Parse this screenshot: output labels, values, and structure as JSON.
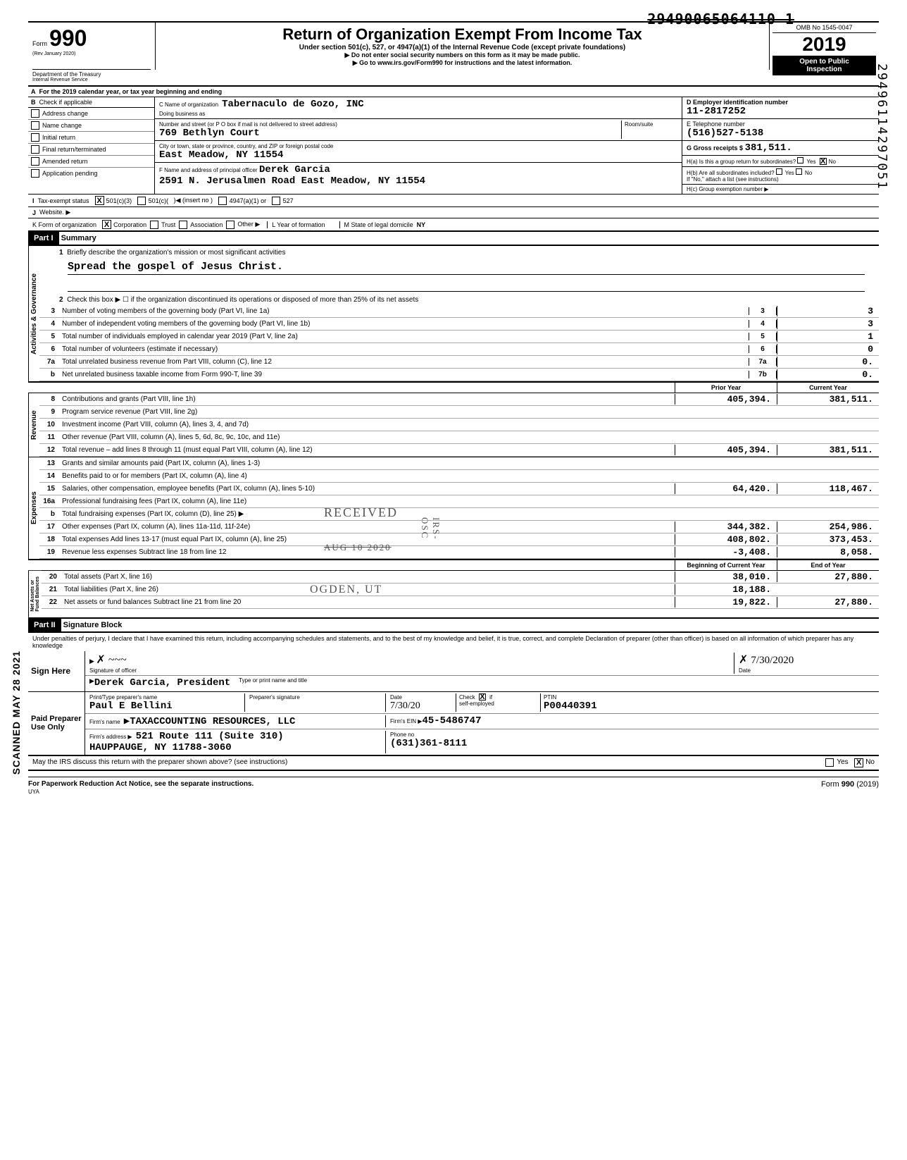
{
  "strike_number": "29490065064110 1",
  "vertical_right": "29496114297051",
  "vertical_left": "SCANNED MAY 28 2021",
  "header": {
    "form_label": "Form",
    "form_number": "990",
    "rev": "(Rev January 2020)",
    "dept1": "Department of the Treasury",
    "dept2": "Internal Revenue Service",
    "title": "Return of Organization Exempt From Income Tax",
    "subtitle": "Under section 501(c), 527, or 4947(a)(1) of the Internal Revenue Code (except private foundations)",
    "arrow1": "▶ Do not enter social security numbers on this form as it may be made public.",
    "arrow2": "▶ Go to www.irs.gov/Form990 for instructions and the latest information.",
    "omb": "OMB No 1545-0047",
    "year": "2019",
    "open1": "Open to Public",
    "open2": "Inspection"
  },
  "line_a": "For the 2019 calendar year, or tax year beginning                                and ending",
  "section_b": {
    "label": "Check if applicable",
    "checks": [
      "Address change",
      "Name change",
      "Initial return",
      "Final return/terminated",
      "Amended return",
      "Application pending"
    ],
    "c_label": "C Name of organization",
    "c_name": "Tabernaculo de Gozo, INC",
    "dba_label": "Doing business as",
    "addr_label": "Number and street (or P O box if mail is not delivered to street address)",
    "addr": "769 Bethlyn Court",
    "room_label": "Room/suite",
    "city_label": "City or town, state or province, country, and ZIP or foreign postal code",
    "city": "East Meadow, NY 11554",
    "f_label": "F Name and address of principal officer",
    "f_name": "Derek Garcia",
    "f_addr": "2591 N. Jerusalmen Road East Meadow, NY 11554",
    "d_label": "D Employer identification number",
    "d_ein": "11-2817252",
    "e_label": "E Telephone number",
    "e_phone": "(516)527-5138",
    "g_label": "G Gross receipts $",
    "g_amount": "381,511.",
    "ha_label": "H(a) Is this a group return for subordinates?",
    "ha_yes": "Yes",
    "ha_no": "No",
    "hb_label": "H(b) Are all subordinates included?",
    "hb_note": "If \"No,\" attach a list (see instructions)",
    "hc_label": "H(c) Group exemption number ▶"
  },
  "line_i": {
    "label": "Tax-exempt status",
    "opt1": "501(c)(3)",
    "opt2": "501(c)(",
    "insert": ")◀ (insert no )",
    "opt3": "4947(a)(1) or",
    "opt4": "527"
  },
  "line_j": {
    "label": "Website. ▶"
  },
  "line_k": {
    "label": "K Form of organization",
    "corp": "Corporation",
    "trust": "Trust",
    "assoc": "Association",
    "other": "Other ▶",
    "l_label": "L  Year of formation",
    "m_label": "M State of legal domicile",
    "m_val": "NY"
  },
  "part1": {
    "header": "Part I",
    "title": "Summary",
    "q1": "Briefly describe the organization's mission or most significant activities",
    "mission": "Spread the gospel of Jesus Christ.",
    "q2": "Check this box ▶ ☐ if the organization discontinued its operations or disposed of more than 25% of its net assets",
    "rows_gov": [
      {
        "n": "3",
        "d": "Number of voting members of the governing body (Part VI, line 1a)",
        "b": "3",
        "v": "3"
      },
      {
        "n": "4",
        "d": "Number of independent voting members of the governing body (Part VI, line 1b)",
        "b": "4",
        "v": "3"
      },
      {
        "n": "5",
        "d": "Total number of individuals employed in calendar year 2019 (Part V, line 2a)",
        "b": "5",
        "v": "1"
      },
      {
        "n": "6",
        "d": "Total number of volunteers (estimate if necessary)",
        "b": "6",
        "v": "0"
      },
      {
        "n": "7a",
        "d": "Total unrelated business revenue from Part VIII, column (C), line 12",
        "b": "7a",
        "v": "0."
      },
      {
        "n": "b",
        "d": "Net unrelated business taxable income from Form 990-T, line 39",
        "b": "7b",
        "v": "0."
      }
    ],
    "col_prior": "Prior Year",
    "col_current": "Current Year",
    "rows_rev": [
      {
        "n": "8",
        "d": "Contributions and grants (Part VIII, line 1h)",
        "p": "405,394.",
        "c": "381,511."
      },
      {
        "n": "9",
        "d": "Program service revenue (Part VIII, line 2g)",
        "p": "",
        "c": ""
      },
      {
        "n": "10",
        "d": "Investment income (Part VIII, column (A), lines 3, 4, and 7d)",
        "p": "",
        "c": ""
      },
      {
        "n": "11",
        "d": "Other revenue (Part VIII, column (A), lines 5, 6d, 8c, 9c, 10c, and 11e)",
        "p": "",
        "c": ""
      },
      {
        "n": "12",
        "d": "Total revenue – add lines 8 through 11 (must equal Part VIII, column (A), line 12)",
        "p": "405,394.",
        "c": "381,511."
      }
    ],
    "rows_exp": [
      {
        "n": "13",
        "d": "Grants and similar amounts paid (Part IX, column (A), lines 1-3)",
        "p": "",
        "c": ""
      },
      {
        "n": "14",
        "d": "Benefits paid to or for members (Part IX, column (A), line 4)",
        "p": "",
        "c": ""
      },
      {
        "n": "15",
        "d": "Salaries, other compensation, employee benefits (Part IX, column (A), lines 5-10)",
        "p": "64,420.",
        "c": "118,467."
      },
      {
        "n": "16a",
        "d": "Professional fundraising fees (Part IX, column (A), line 11e)",
        "p": "",
        "c": ""
      },
      {
        "n": "b",
        "d": "Total fundraising expenses (Part IX, column (D), line 25) ▶",
        "p": "shaded",
        "c": "shaded"
      },
      {
        "n": "17",
        "d": "Other expenses (Part IX, column (A), lines 11a-11d, 11f-24e)",
        "p": "344,382.",
        "c": "254,986."
      },
      {
        "n": "18",
        "d": "Total expenses Add lines 13-17 (must equal Part IX, column (A), line 25)",
        "p": "408,802.",
        "c": "373,453."
      },
      {
        "n": "19",
        "d": "Revenue less expenses Subtract line 18 from line 12",
        "p": "-3,408.",
        "c": "8,058."
      }
    ],
    "col_begin": "Beginning of Current Year",
    "col_end": "End of Year",
    "rows_net": [
      {
        "n": "20",
        "d": "Total assets (Part X, line 16)",
        "p": "38,010.",
        "c": "27,880."
      },
      {
        "n": "21",
        "d": "Total liabilities (Part X, line 26)",
        "p": "18,188.",
        "c": ""
      },
      {
        "n": "22",
        "d": "Net assets or fund balances Subtract line 21 from line 20",
        "p": "19,822.",
        "c": "27,880."
      }
    ],
    "stamp_received": "RECEIVED",
    "stamp_date": "AUG 10 2020",
    "stamp_ogden": "OGDEN, UT",
    "stamp_irs": "IRS-OSC"
  },
  "part2": {
    "header": "Part II",
    "title": "Signature Block",
    "penalty": "Under penalties of perjury, I declare that I have examined this return, including accompanying schedules and statements, and to the best of my knowledge and belief, it is true, correct, and complete Declaration of preparer (other than officer) is based on all information of which preparer has any knowledge",
    "sign_here": "Sign Here",
    "sig_of_officer": "Signature of officer",
    "sig_date": "7/30/2020",
    "date_label": "Date",
    "officer_name": "Derek Garcia, President",
    "type_name": "Type or print name and title",
    "paid_prep": "Paid Preparer Use Only",
    "prep_name_label": "Print/Type preparer's name",
    "prep_name": "Paul E Bellini",
    "prep_sig_label": "Preparer's signature",
    "prep_date": "7/30/20",
    "check_if": "Check",
    "self_emp": "self-employed",
    "ptin_label": "PTIN",
    "ptin": "P00440391",
    "firm_name_label": "Firm's name",
    "firm_name": "▶TAXACCOUNTING RESOURCES, LLC",
    "firm_ein_label": "Firm's EIN ▶",
    "firm_ein": "45-5486747",
    "firm_addr_label": "Firm's address ▶",
    "firm_addr1": "521 Route 111 (Suite 310)",
    "firm_addr2": "HAUPPAUGE, NY 11788-3060",
    "phone_label": "Phone no",
    "phone": "(631)361-8111",
    "may_irs": "May the IRS discuss this return with the preparer shown above? (see instructions)",
    "yes": "Yes",
    "no": "No"
  },
  "footer": {
    "left": "For Paperwork Reduction Act Notice, see the separate instructions.",
    "uya": "UYA",
    "right": "Form 990 (2019)"
  }
}
